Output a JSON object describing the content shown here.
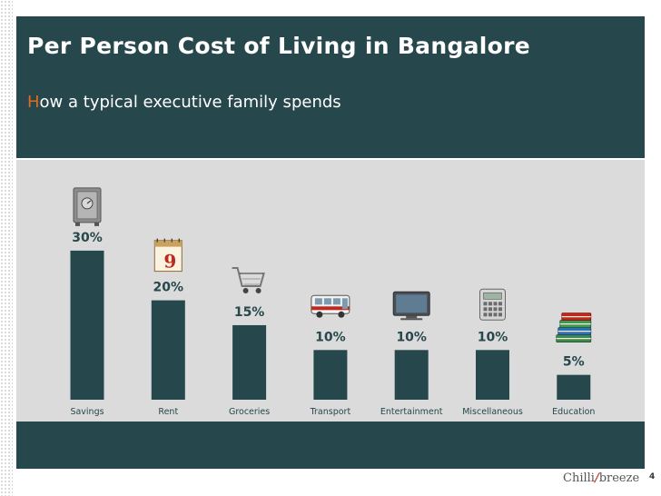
{
  "header": {
    "title": "Per Person Cost of Living in Bangalore",
    "subtitle_first_letter": "H",
    "subtitle_rest": "ow a typical executive family spends"
  },
  "chart_data": {
    "type": "bar",
    "categories": [
      "Savings",
      "Rent",
      "Groceries",
      "Transport",
      "Entertainment",
      "Miscellaneous",
      "Education"
    ],
    "values": [
      30,
      20,
      15,
      10,
      10,
      10,
      5
    ],
    "value_labels": [
      "30%",
      "20%",
      "15%",
      "10%",
      "10%",
      "10%",
      "5%"
    ],
    "icons": [
      "safe-icon",
      "calendar-icon",
      "shopping-cart-icon",
      "bus-icon",
      "tv-icon",
      "calculator-icon",
      "books-icon"
    ],
    "title": "",
    "xlabel": "",
    "ylabel": "",
    "ylim": [
      0,
      30
    ],
    "grid": false,
    "colors": {
      "bar": "#26474b",
      "label": "#26474b",
      "category": "#26474b"
    }
  },
  "footer": {
    "page_number": "4",
    "logo_part1": "Chilli",
    "logo_slash": "/",
    "logo_part2": "breeze"
  },
  "colors": {
    "header_bg": "#26474b",
    "panel_bg": "#dbdbdb",
    "accent": "#e06a1e"
  }
}
